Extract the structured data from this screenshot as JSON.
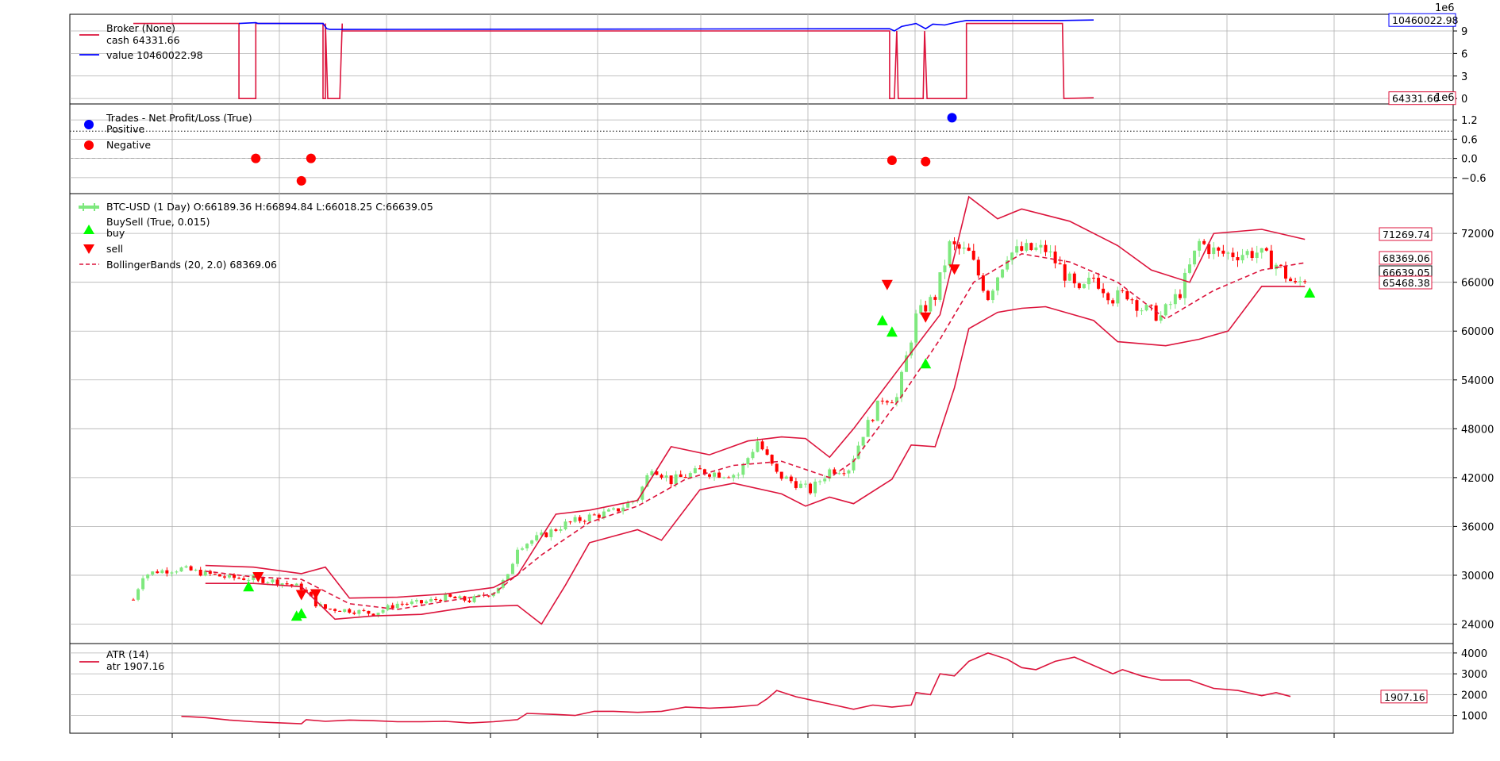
{
  "chart_data": [
    {
      "type": "line",
      "name_label": "Broker (None)",
      "legend": [
        "cash 64331.66",
        "value 10460022.98"
      ],
      "y_offset_label": "1e6",
      "yticks": [
        "0",
        "3",
        "6",
        "9"
      ],
      "ylim": [
        -0.3,
        10.8
      ],
      "series": [
        {
          "name": "cash",
          "color": "#dc143c",
          "points": [
            [
              0,
              10.0
            ],
            [
              22,
              10.0
            ],
            [
              22,
              0.0
            ],
            [
              25.5,
              0.0
            ],
            [
              25.5,
              10.0
            ],
            [
              39.5,
              10.0
            ],
            [
              39.5,
              0.0
            ],
            [
              40.0,
              0.0
            ],
            [
              40.0,
              10.0
            ],
            [
              40.5,
              0.0
            ],
            [
              43.0,
              0.0
            ],
            [
              43.5,
              10.0
            ],
            [
              43.5,
              9.0
            ],
            [
              157.5,
              9.0
            ],
            [
              157.5,
              0.0
            ],
            [
              158.5,
              0.0
            ],
            [
              159.0,
              9.0
            ],
            [
              159.3,
              0.0
            ],
            [
              164.5,
              0.0
            ],
            [
              164.8,
              9.0
            ],
            [
              165.3,
              0.0
            ],
            [
              173.5,
              0.0
            ],
            [
              173.5,
              10.0
            ],
            [
              193.5,
              10.0
            ],
            [
              193.8,
              0.0
            ],
            [
              200,
              0.1
            ]
          ]
        },
        {
          "name": "value",
          "color": "#0000ff",
          "points": [
            [
              22,
              10.0
            ],
            [
              25.5,
              10.1
            ],
            [
              26,
              10.0
            ],
            [
              39.5,
              10.0
            ],
            [
              40.3,
              9.3
            ],
            [
              41,
              9.2
            ],
            [
              43.5,
              9.2
            ],
            [
              157.5,
              9.3
            ],
            [
              158.5,
              9.0
            ],
            [
              160,
              9.6
            ],
            [
              163,
              10.0
            ],
            [
              165,
              9.3
            ],
            [
              166.5,
              9.9
            ],
            [
              169,
              9.8
            ],
            [
              171,
              10.1
            ],
            [
              173.5,
              10.4
            ],
            [
              193.5,
              10.4
            ],
            [
              200,
              10.46
            ]
          ]
        }
      ],
      "end_labels": [
        "10460022.98",
        "64331.66"
      ]
    },
    {
      "type": "scatter",
      "name_label": "Trades - Net Profit/Loss (True)",
      "legend": [
        "Positive",
        "Negative"
      ],
      "y_offset_label": "1e6",
      "yticks": [
        "−0.6",
        "0.0",
        "0.6",
        "1.2"
      ],
      "ylim": [
        -1.0,
        1.6
      ],
      "dotted_line": 0.85,
      "dashed_line": 0.0,
      "positive": [
        [
          170.5,
          1.27
        ]
      ],
      "negative": [
        [
          25.5,
          0.0
        ],
        [
          35,
          -0.7
        ],
        [
          37,
          0.0
        ],
        [
          158,
          -0.06
        ],
        [
          165,
          -0.1
        ]
      ]
    },
    {
      "type": "candlestick",
      "name_label": "BTC-USD (1 Day) O:66189.36 H:66894.84 L:66018.25 C:66639.05",
      "legend": [
        "BuySell (True, 0.015)",
        "buy",
        "sell",
        "BollingerBands (20, 2.0) 68369.06"
      ],
      "yticks": [
        "24000",
        "30000",
        "36000",
        "42000",
        "48000",
        "54000",
        "60000",
        "66000",
        "72000"
      ],
      "ylim": [
        22000,
        76500
      ],
      "close_anchors": [
        [
          0,
          27000
        ],
        [
          2,
          30000
        ],
        [
          5,
          30500
        ],
        [
          10,
          30800
        ],
        [
          15,
          30200
        ],
        [
          20,
          29700
        ],
        [
          25,
          29600
        ],
        [
          30,
          29200
        ],
        [
          35,
          28500
        ],
        [
          38,
          26500
        ],
        [
          40,
          25900
        ],
        [
          45,
          25700
        ],
        [
          50,
          25300
        ],
        [
          55,
          26500
        ],
        [
          60,
          26600
        ],
        [
          65,
          27300
        ],
        [
          70,
          26900
        ],
        [
          75,
          28000
        ],
        [
          78,
          29800
        ],
        [
          80,
          33500
        ],
        [
          85,
          34800
        ],
        [
          90,
          36300
        ],
        [
          95,
          37200
        ],
        [
          100,
          37800
        ],
        [
          105,
          39500
        ],
        [
          108,
          43400
        ],
        [
          112,
          41600
        ],
        [
          118,
          42800
        ],
        [
          122,
          42500
        ],
        [
          126,
          42400
        ],
        [
          130,
          46500
        ],
        [
          134,
          42400
        ],
        [
          138,
          41300
        ],
        [
          141,
          40400
        ],
        [
          145,
          42900
        ],
        [
          149,
          43200
        ],
        [
          152,
          47500
        ],
        [
          156,
          51800
        ],
        [
          159,
          51800
        ],
        [
          163,
          61700
        ],
        [
          167,
          64300
        ],
        [
          170,
          70500
        ],
        [
          174,
          69500
        ],
        [
          178,
          64300
        ],
        [
          182,
          69500
        ],
        [
          186,
          70000
        ],
        [
          190,
          70000
        ],
        [
          193,
          67800
        ],
        [
          197,
          64500
        ],
        [
          200,
          66600
        ],
        [
          204,
          64100
        ],
        [
          207,
          64600
        ],
        [
          210,
          62800
        ],
        [
          214,
          61800
        ],
        [
          218,
          64800
        ],
        [
          222,
          70900
        ],
        [
          226,
          69500
        ],
        [
          230,
          69500
        ],
        [
          234,
          69700
        ],
        [
          238,
          68200
        ],
        [
          242,
          65500
        ],
        [
          244,
          66600
        ]
      ],
      "bb_mid": [
        [
          15,
          30500
        ],
        [
          25,
          29800
        ],
        [
          35,
          29500
        ],
        [
          45,
          26500
        ],
        [
          55,
          25800
        ],
        [
          65,
          26800
        ],
        [
          75,
          27700
        ],
        [
          85,
          32500
        ],
        [
          95,
          36500
        ],
        [
          105,
          38500
        ],
        [
          115,
          41800
        ],
        [
          125,
          43500
        ],
        [
          135,
          44000
        ],
        [
          145,
          42000
        ],
        [
          150,
          44000
        ],
        [
          160,
          52000
        ],
        [
          168,
          59000
        ],
        [
          175,
          66000
        ],
        [
          185,
          69500
        ],
        [
          195,
          68500
        ],
        [
          205,
          66000
        ],
        [
          215,
          61500
        ],
        [
          225,
          65000
        ],
        [
          235,
          67500
        ],
        [
          244,
          68400
        ]
      ],
      "bb_top": [
        [
          15,
          31200
        ],
        [
          25,
          31000
        ],
        [
          35,
          30200
        ],
        [
          40,
          31000
        ],
        [
          45,
          27200
        ],
        [
          55,
          27300
        ],
        [
          65,
          27700
        ],
        [
          75,
          28500
        ],
        [
          80,
          30000
        ],
        [
          88,
          37500
        ],
        [
          95,
          38000
        ],
        [
          105,
          39200
        ],
        [
          112,
          45800
        ],
        [
          120,
          44800
        ],
        [
          128,
          46500
        ],
        [
          135,
          47000
        ],
        [
          140,
          46800
        ],
        [
          145,
          44500
        ],
        [
          150,
          48000
        ],
        [
          160,
          55800
        ],
        [
          168,
          62000
        ],
        [
          174,
          76500
        ],
        [
          180,
          73800
        ],
        [
          185,
          75000
        ],
        [
          195,
          73500
        ],
        [
          205,
          70500
        ],
        [
          212,
          67500
        ],
        [
          220,
          66000
        ],
        [
          225,
          72000
        ],
        [
          235,
          72500
        ],
        [
          244,
          71270
        ]
      ],
      "bb_bot": [
        [
          15,
          29000
        ],
        [
          25,
          29000
        ],
        [
          35,
          28600
        ],
        [
          42,
          24600
        ],
        [
          50,
          25000
        ],
        [
          60,
          25200
        ],
        [
          70,
          26100
        ],
        [
          80,
          26300
        ],
        [
          85,
          24000
        ],
        [
          90,
          28800
        ],
        [
          95,
          34000
        ],
        [
          105,
          35600
        ],
        [
          110,
          34300
        ],
        [
          118,
          40500
        ],
        [
          125,
          41300
        ],
        [
          135,
          40000
        ],
        [
          140,
          38500
        ],
        [
          145,
          39600
        ],
        [
          150,
          38800
        ],
        [
          158,
          41800
        ],
        [
          162,
          46000
        ],
        [
          167,
          45800
        ],
        [
          171,
          53000
        ],
        [
          174,
          60300
        ],
        [
          180,
          62300
        ],
        [
          185,
          62800
        ],
        [
          190,
          63000
        ],
        [
          200,
          61300
        ],
        [
          205,
          58700
        ],
        [
          215,
          58200
        ],
        [
          222,
          59000
        ],
        [
          228,
          60000
        ],
        [
          235,
          65500
        ],
        [
          244,
          65470
        ]
      ],
      "buy": [
        [
          34,
          25000
        ],
        [
          35,
          25300
        ],
        [
          24,
          28600
        ],
        [
          156,
          61300
        ],
        [
          158,
          59900
        ],
        [
          165,
          56000
        ],
        [
          245,
          64700
        ]
      ],
      "sell": [
        [
          26,
          29800
        ],
        [
          35,
          27600
        ],
        [
          38,
          27700
        ],
        [
          157,
          65700
        ],
        [
          165,
          61700
        ],
        [
          171,
          67600
        ]
      ],
      "end_labels": [
        "71269.74",
        "68369.06",
        "66639.05",
        "65468.38"
      ]
    },
    {
      "type": "line",
      "name_label": "ATR (14)",
      "legend": [
        "atr 1907.16"
      ],
      "yticks": [
        "1000",
        "2000",
        "3000",
        "4000"
      ],
      "ylim": [
        300,
        4300
      ],
      "series": [
        {
          "name": "atr",
          "color": "#dc143c",
          "points": [
            [
              10,
              960
            ],
            [
              15,
              900
            ],
            [
              20,
              780
            ],
            [
              25,
              700
            ],
            [
              30,
              650
            ],
            [
              35,
              600
            ],
            [
              36,
              800
            ],
            [
              40,
              720
            ],
            [
              45,
              780
            ],
            [
              50,
              750
            ],
            [
              55,
              700
            ],
            [
              60,
              700
            ],
            [
              65,
              720
            ],
            [
              70,
              640
            ],
            [
              75,
              700
            ],
            [
              80,
              800
            ],
            [
              82,
              1100
            ],
            [
              88,
              1050
            ],
            [
              92,
              1000
            ],
            [
              96,
              1200
            ],
            [
              100,
              1200
            ],
            [
              105,
              1150
            ],
            [
              110,
              1200
            ],
            [
              115,
              1400
            ],
            [
              120,
              1350
            ],
            [
              125,
              1400
            ],
            [
              130,
              1500
            ],
            [
              132,
              1800
            ],
            [
              134,
              2200
            ],
            [
              138,
              1900
            ],
            [
              142,
              1700
            ],
            [
              146,
              1500
            ],
            [
              150,
              1300
            ],
            [
              154,
              1500
            ],
            [
              158,
              1400
            ],
            [
              162,
              1500
            ],
            [
              163,
              2100
            ],
            [
              166,
              2000
            ],
            [
              168,
              3000
            ],
            [
              171,
              2900
            ],
            [
              174,
              3600
            ],
            [
              178,
              4000
            ],
            [
              182,
              3700
            ],
            [
              185,
              3300
            ],
            [
              188,
              3200
            ],
            [
              192,
              3600
            ],
            [
              196,
              3800
            ],
            [
              200,
              3400
            ],
            [
              204,
              3000
            ],
            [
              206,
              3200
            ],
            [
              210,
              2900
            ],
            [
              214,
              2700
            ],
            [
              220,
              2700
            ],
            [
              225,
              2300
            ],
            [
              230,
              2200
            ],
            [
              235,
              1950
            ],
            [
              238,
              2100
            ],
            [
              241,
              1910
            ]
          ]
        }
      ],
      "end_labels": [
        "1907.16"
      ]
    }
  ]
}
